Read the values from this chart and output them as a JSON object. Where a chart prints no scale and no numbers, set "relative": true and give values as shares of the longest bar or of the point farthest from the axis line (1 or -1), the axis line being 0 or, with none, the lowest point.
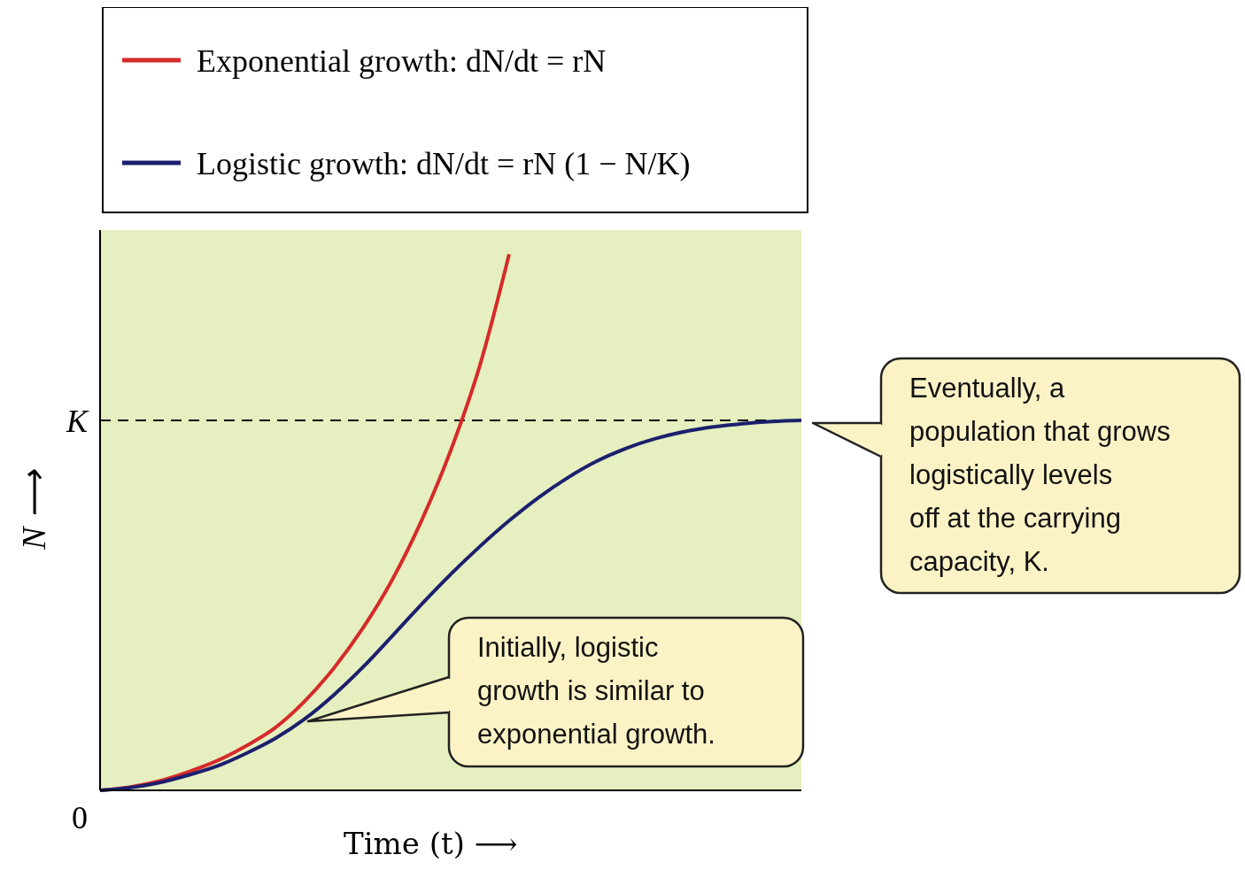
{
  "chart_data": {
    "type": "line",
    "xlabel": "Time (t) ⟶",
    "ylabel": "N ⟶",
    "categories": [
      null,
      null,
      null,
      null,
      null,
      null,
      null,
      null,
      null,
      null,
      null,
      null,
      null,
      null,
      null,
      null,
      null,
      null,
      null,
      null,
      null,
      null,
      null,
      null,
      null
    ],
    "series": [
      {
        "name": "Exponential growth: dN/dt = rN",
        "color": "#d62a2a",
        "values": [
          0,
          0.006,
          0.017,
          0.034,
          0.055,
          0.083,
          0.117,
          0.166,
          0.228,
          0.303,
          0.393,
          0.503,
          0.634,
          0.793,
          1,
          null,
          null,
          null,
          null,
          null,
          null,
          null,
          null,
          null,
          null
        ]
      },
      {
        "name": "Logistic growth: dN/dt = rN (1 − N/K)",
        "color": "#1c1f6e",
        "values": [
          0,
          0.005,
          0.014,
          0.028,
          0.045,
          0.069,
          0.097,
          0.133,
          0.178,
          0.23,
          0.288,
          0.347,
          0.403,
          0.455,
          0.503,
          0.546,
          0.583,
          0.614,
          0.638,
          0.656,
          0.669,
          0.678,
          0.684,
          0.688,
          0.69
        ]
      }
    ],
    "relative": true,
    "ref_lines": [
      {
        "axis": "y",
        "value": 0.69,
        "label": "K",
        "color": "#000000",
        "line_style": "dashed"
      }
    ],
    "annotations": [
      "Eventually, a population that grows logistically levels off at the carrying capacity, K.",
      "Initially, logistic growth is similar to exponential growth.",
      "0"
    ],
    "grid": false,
    "legend": "top left",
    "line_style": "solid"
  }
}
